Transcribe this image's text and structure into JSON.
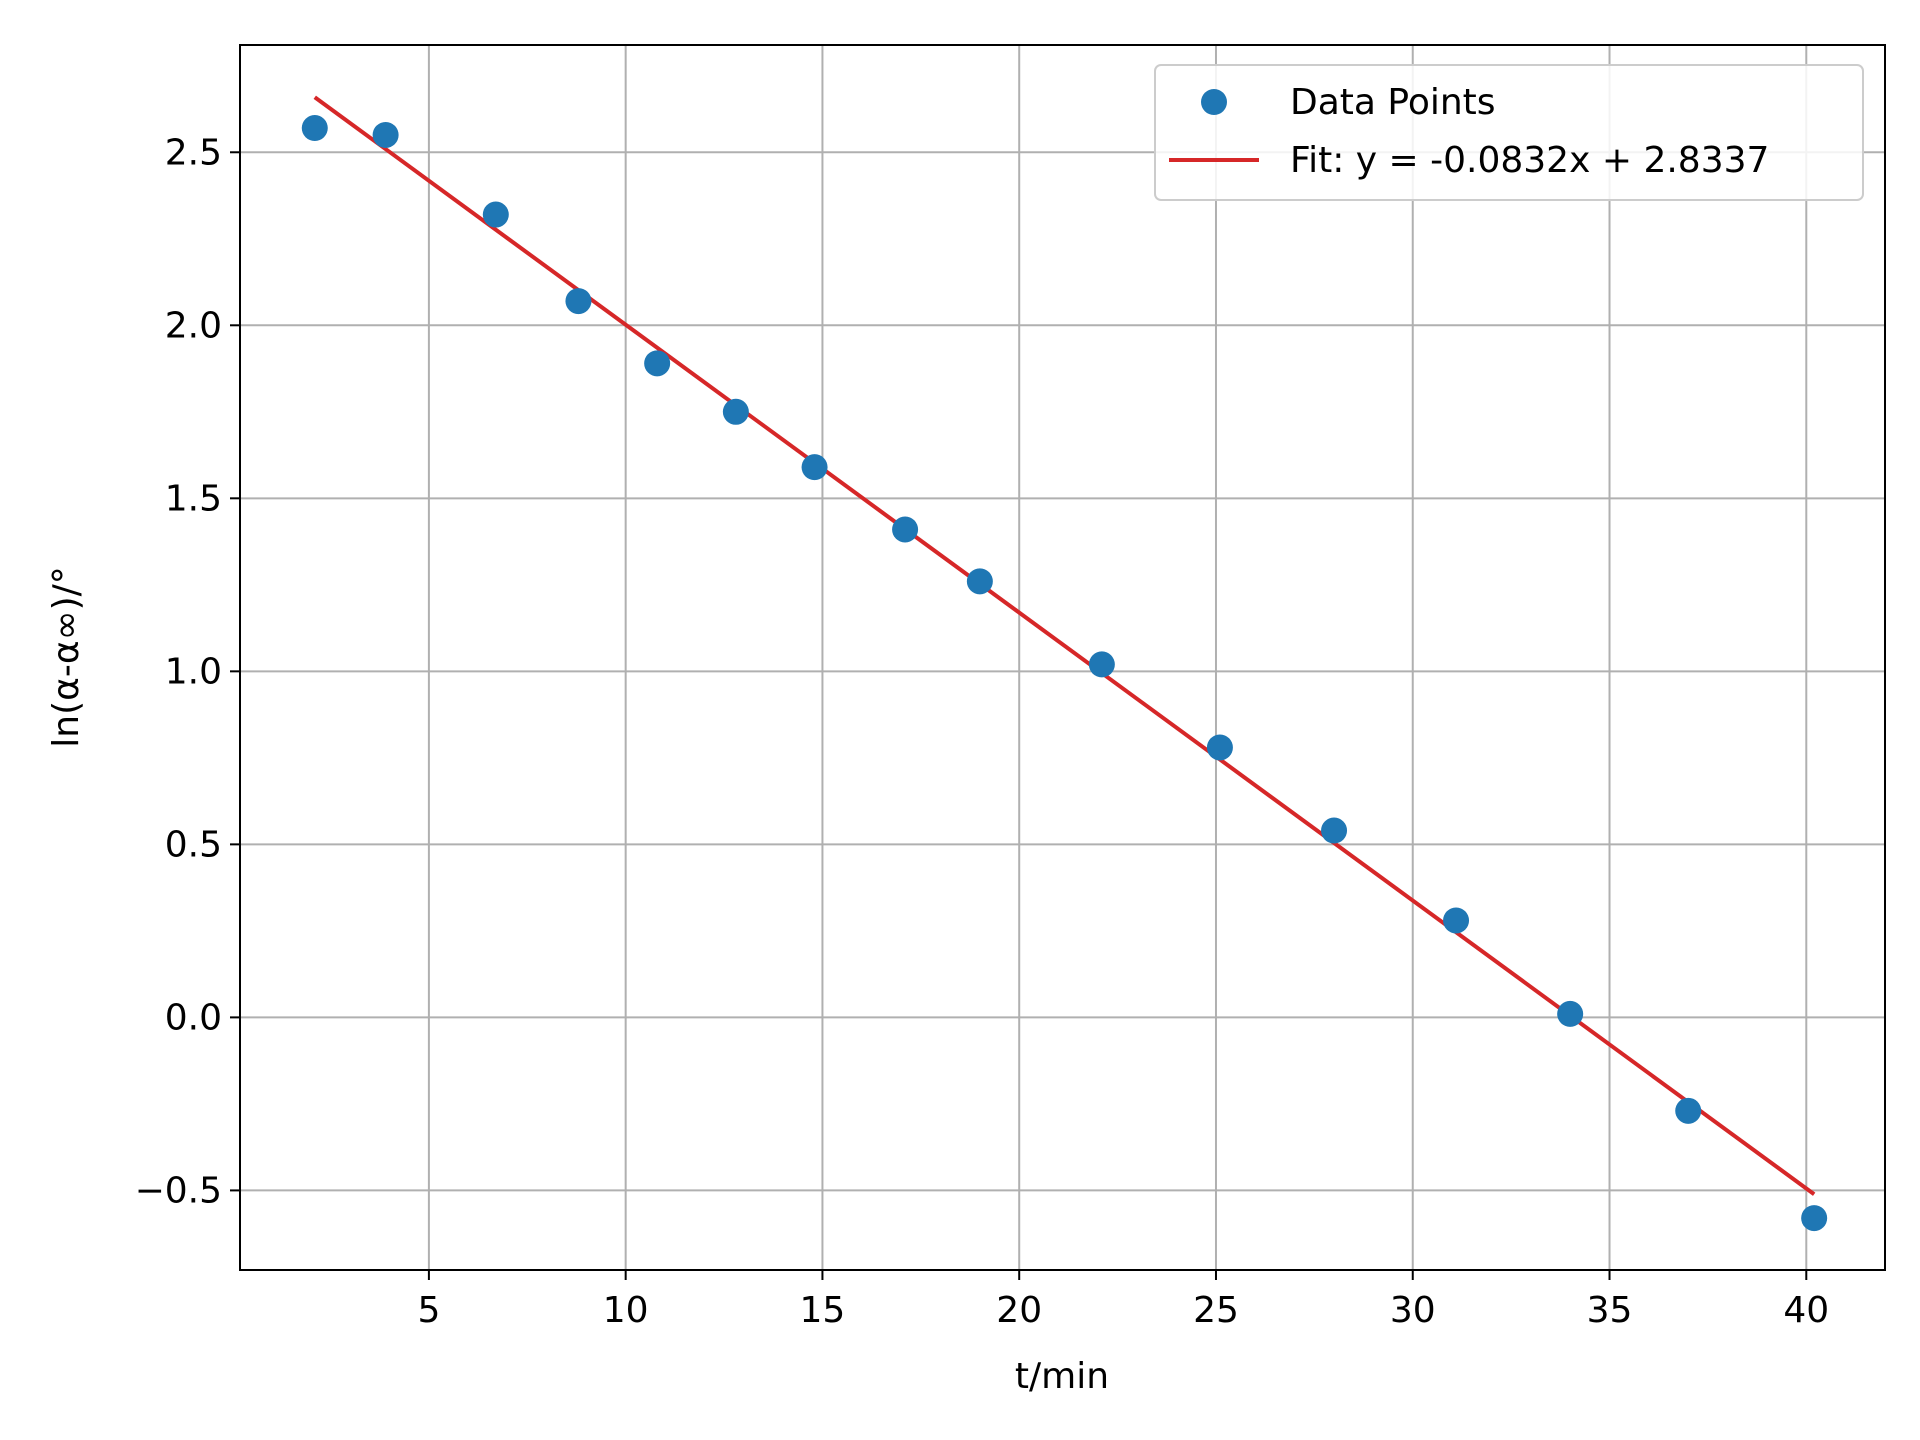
{
  "chart_data": {
    "type": "scatter",
    "title": "",
    "xlabel": "t/min",
    "ylabel": "ln(α-α∞)/°",
    "xlim": [
      0.2,
      42.0
    ],
    "ylim": [
      -0.73,
      2.81
    ],
    "xticks": [
      5,
      10,
      15,
      20,
      25,
      30,
      35,
      40
    ],
    "xtick_labels": [
      "5",
      "10",
      "15",
      "20",
      "25",
      "30",
      "35",
      "40"
    ],
    "yticks": [
      -0.5,
      0.0,
      0.5,
      1.0,
      1.5,
      2.0,
      2.5
    ],
    "ytick_labels": [
      "−0.5",
      "0.0",
      "0.5",
      "1.0",
      "1.5",
      "2.0",
      "2.5"
    ],
    "grid": true,
    "legend_position": "top-right",
    "series": [
      {
        "name": "Data Points",
        "kind": "scatter",
        "color": "#1f77b4",
        "x": [
          2.1,
          3.9,
          6.7,
          8.8,
          10.8,
          12.8,
          14.8,
          17.1,
          19.0,
          22.1,
          25.1,
          28.0,
          31.1,
          34.0,
          37.0,
          40.2
        ],
        "y": [
          2.57,
          2.55,
          2.32,
          2.07,
          1.89,
          1.75,
          1.59,
          1.41,
          1.26,
          1.02,
          0.78,
          0.54,
          0.28,
          0.01,
          -0.27,
          -0.58
        ]
      },
      {
        "name": "Fit: y = -0.0832x + 2.8337",
        "kind": "line",
        "color": "#d62728",
        "x": [
          2.1,
          40.2
        ],
        "y": [
          2.659,
          -0.511
        ]
      }
    ]
  }
}
